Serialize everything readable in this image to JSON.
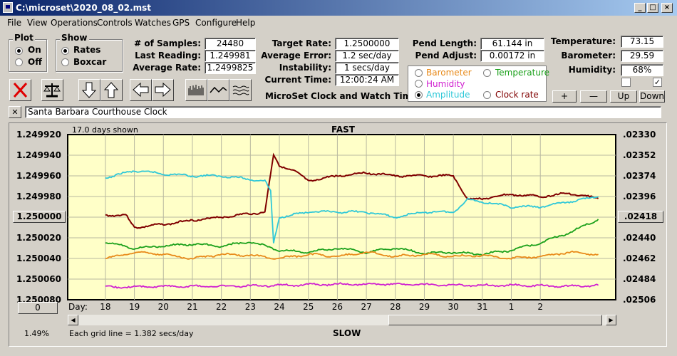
{
  "window": {
    "title": "C:\\microset\\2020_08_02.mst"
  },
  "menu": [
    "File",
    "View",
    "Operations",
    "Controls",
    "Watches",
    "GPS",
    "Configure",
    "Help"
  ],
  "plot_group": {
    "title": "Plot",
    "on": "On",
    "off": "Off",
    "selected": "On"
  },
  "show_group": {
    "title": "Show",
    "rates": "Rates",
    "boxcar": "Boxcar",
    "selected": "Rates"
  },
  "stats": {
    "samples_label": "# of Samples:",
    "samples": "24480",
    "last_label": "Last Reading:",
    "last": "1.249981",
    "avg_rate_label": "Average Rate:",
    "avg_rate": "1.2499825",
    "target_label": "Target Rate:",
    "target": "1.2500000",
    "avg_err_label": "Average Error:",
    "avg_err": "1.2 sec/day",
    "instab_label": "Instability:",
    "instab": "1 secs/day",
    "time_label": "Current Time:",
    "time": "12:00:24 AM",
    "pend_len_label": "Pend Length:",
    "pend_len": "61.144 in",
    "pend_adj_label": "Pend Adjust:",
    "pend_adj": "0.00172 in",
    "temp_label": "Temperature:",
    "temp": "73.15",
    "baro_label": "Barometer:",
    "baro": "29.59",
    "hum_label": "Humidity:",
    "hum": "68%"
  },
  "app_title": "MicroSet Clock and Watch Timer",
  "legend": {
    "barometer": "Barometer",
    "temperature": "Temperature",
    "humidity": "Humidity",
    "amplitude": "Amplitude",
    "clock_rate": "Clock rate",
    "selected": "Amplitude",
    "colors": {
      "barometer": "#e88a1a",
      "temperature": "#1aa01a",
      "humidity": "#d020d0",
      "amplitude": "#30c8d8",
      "clock_rate": "#800000"
    }
  },
  "scale_buttons": {
    "plus": "+",
    "minus": "—",
    "up": "Up",
    "down": "Down"
  },
  "clock_name": "Santa Barbara Courthouse Clock",
  "close_x": "✕",
  "chart_data": {
    "type": "line",
    "top_label": "FAST",
    "bottom_label": "SLOW",
    "days_shown": "17.0 days shown",
    "grid_note": "Each grid line = 1.382 secs/day",
    "left_ticks": [
      "1.249920",
      "1.249940",
      "1.249960",
      "1.249980",
      "1.250000",
      "1.250020",
      "1.250040",
      "1.250060",
      "1.250080"
    ],
    "right_ticks": [
      ".02330",
      ".02352",
      ".02374",
      ".02396",
      ".02418",
      ".02440",
      ".02462",
      ".02484",
      ".02506"
    ],
    "left_button": "1.250000",
    "right_button": ".02418",
    "x_prefix": "Day:",
    "x_ticks": [
      "18",
      "19",
      "20",
      "21",
      "22",
      "23",
      "24",
      "25",
      "26",
      "27",
      "28",
      "29",
      "30",
      "31",
      "1",
      "2"
    ],
    "offset_button": "0",
    "percent": "1.49%",
    "series": [
      {
        "name": "Clock rate",
        "color": "#800000",
        "points": [
          [
            0,
            1.249998
          ],
          [
            0.7,
            1.249998
          ],
          [
            1,
            1.25001
          ],
          [
            2,
            1.250007
          ],
          [
            3,
            1.250003
          ],
          [
            4,
            1.25
          ],
          [
            5.5,
            1.249995
          ],
          [
            5.8,
            1.24994
          ],
          [
            6,
            1.24995
          ],
          [
            6.5,
            1.249955
          ],
          [
            7,
            1.249965
          ],
          [
            8,
            1.24996
          ],
          [
            9,
            1.249957
          ],
          [
            10,
            1.24996
          ],
          [
            11,
            1.24996
          ],
          [
            12,
            1.24996
          ],
          [
            12.5,
            1.249983
          ],
          [
            13,
            1.249982
          ],
          [
            14,
            1.249978
          ],
          [
            15,
            1.24998
          ],
          [
            16,
            1.249977
          ],
          [
            17,
            1.249982
          ]
        ]
      },
      {
        "name": "Amplitude",
        "color": "#30c8d8",
        "points": [
          [
            0,
            1.249962
          ],
          [
            1,
            1.249955
          ],
          [
            2,
            1.249958
          ],
          [
            3,
            1.24996
          ],
          [
            4,
            1.24996
          ],
          [
            5.5,
            1.249965
          ],
          [
            5.7,
            1.249975
          ],
          [
            5.8,
            1.250025
          ],
          [
            6,
            1.25
          ],
          [
            7,
            1.249995
          ],
          [
            8,
            1.249995
          ],
          [
            9,
            1.249995
          ],
          [
            10,
            1.25
          ],
          [
            11,
            1.249995
          ],
          [
            12,
            1.249995
          ],
          [
            12.5,
            1.249983
          ],
          [
            13,
            1.249985
          ],
          [
            14,
            1.24999
          ],
          [
            15,
            1.24999
          ],
          [
            16,
            1.249985
          ],
          [
            17,
            1.24998
          ]
        ]
      },
      {
        "name": "Temperature",
        "color": "#1aa01a",
        "points": [
          [
            0,
            1.250024
          ],
          [
            1,
            1.25003
          ],
          [
            2,
            1.250028
          ],
          [
            3,
            1.250026
          ],
          [
            4,
            1.250028
          ],
          [
            5,
            1.250024
          ],
          [
            6,
            1.250032
          ],
          [
            7,
            1.250034
          ],
          [
            8,
            1.25003
          ],
          [
            9,
            1.250034
          ],
          [
            10,
            1.25003
          ],
          [
            11,
            1.250035
          ],
          [
            12,
            1.250034
          ],
          [
            13,
            1.250036
          ],
          [
            14,
            1.250032
          ],
          [
            15,
            1.250025
          ],
          [
            16,
            1.250015
          ],
          [
            17,
            1.250002
          ]
        ]
      },
      {
        "name": "Barometer",
        "color": "#e88a1a",
        "points": [
          [
            0,
            1.25004
          ],
          [
            1,
            1.250034
          ],
          [
            2,
            1.250036
          ],
          [
            3,
            1.25004
          ],
          [
            4,
            1.250036
          ],
          [
            5,
            1.250037
          ],
          [
            6,
            1.25004
          ],
          [
            7,
            1.250036
          ],
          [
            8,
            1.250038
          ],
          [
            9,
            1.250034
          ],
          [
            10,
            1.250038
          ],
          [
            11,
            1.250036
          ],
          [
            12,
            1.250038
          ],
          [
            13,
            1.250037
          ],
          [
            14,
            1.25004
          ],
          [
            15,
            1.250038
          ],
          [
            16,
            1.250034
          ],
          [
            17,
            1.250036
          ]
        ]
      },
      {
        "name": "Humidity",
        "color": "#d020d0",
        "points": [
          [
            0,
            1.250068
          ],
          [
            2,
            1.250067
          ],
          [
            4,
            1.250067
          ],
          [
            6,
            1.250066
          ],
          [
            8,
            1.250065
          ],
          [
            10,
            1.250065
          ],
          [
            12,
            1.250066
          ],
          [
            14,
            1.250066
          ],
          [
            16,
            1.250067
          ],
          [
            17,
            1.250066
          ]
        ]
      }
    ]
  }
}
